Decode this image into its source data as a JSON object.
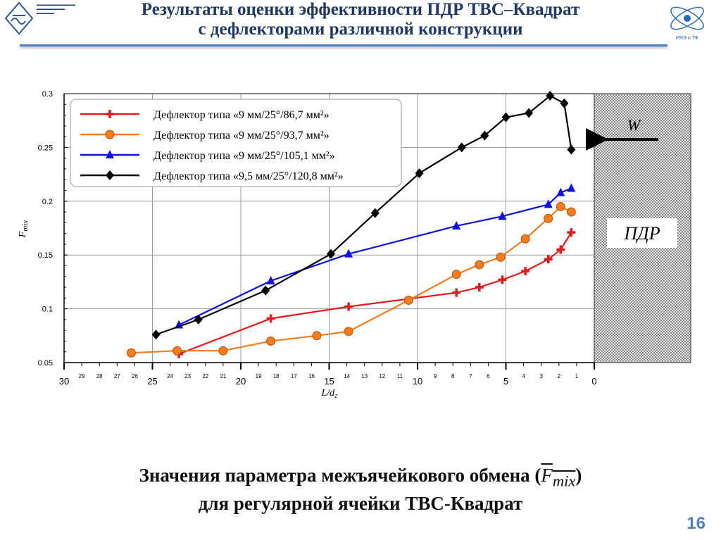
{
  "header": {
    "title_line1": "Результаты оценки эффективности ПДР ТВС–Квадрат",
    "title_line2": "с дефлекторами различной конструкции",
    "logo_right_text": "ИЯЭ и ТФ"
  },
  "caption": {
    "line1_prefix": "Значения параметра межъячейкового обмена (",
    "line1_symbol": "F",
    "line1_sub": "mix",
    "line1_suffix": ")",
    "line2": "для регулярной ячейки ТВС-Квадрат"
  },
  "page_number": "16",
  "chart_data": {
    "type": "line",
    "xlabel": "L/dг",
    "ylabel": "Fmix",
    "xlim": [
      30,
      0
    ],
    "ylim": [
      0.05,
      0.3
    ],
    "y_ticks": [
      "0.05",
      "0.1",
      "0.15",
      "0.2",
      "0.25",
      "0.3"
    ],
    "x_major_ticks": [
      "30",
      "25",
      "20",
      "15",
      "10",
      "5",
      "0"
    ],
    "x_minor_ticks": [
      "29",
      "28",
      "27",
      "26",
      "24",
      "23",
      "22",
      "21",
      "19",
      "18",
      "17",
      "16",
      "14",
      "13",
      "12",
      "11",
      "9",
      "8",
      "7",
      "6",
      "4",
      "3",
      "2",
      "1"
    ],
    "grid": true,
    "legend_position": "top-left",
    "annotations": {
      "zone": "ПДР",
      "flow": "W"
    },
    "series": [
      {
        "name": "Дефлектор типа «9 мм/25°/86,7 мм²»",
        "color": "#e31a1c",
        "marker": "plus",
        "x": [
          23.5,
          18.3,
          13.9,
          7.8,
          6.5,
          5.2,
          3.9,
          2.6,
          1.9,
          1.3
        ],
        "y": [
          0.058,
          0.091,
          0.102,
          0.115,
          0.12,
          0.127,
          0.135,
          0.146,
          0.155,
          0.171
        ]
      },
      {
        "name": "Дефлектор типа «9 мм/25°/93,7 мм²»",
        "color": "#f47c20",
        "marker": "circle",
        "x": [
          26.2,
          23.6,
          21,
          18.3,
          15.7,
          13.9,
          10.5,
          7.8,
          6.5,
          5.3,
          3.9,
          2.6,
          1.9,
          1.3
        ],
        "y": [
          0.059,
          0.061,
          0.061,
          0.07,
          0.075,
          0.079,
          0.108,
          0.132,
          0.141,
          0.148,
          0.165,
          0.184,
          0.195,
          0.19
        ]
      },
      {
        "name": "Дефлектор типа «9 мм/25°/105,1 мм²»",
        "color": "#1010e0",
        "marker": "triangle",
        "x": [
          23.5,
          18.3,
          13.9,
          7.8,
          5.2,
          2.6,
          1.9,
          1.3
        ],
        "y": [
          0.085,
          0.126,
          0.151,
          0.177,
          0.186,
          0.197,
          0.208,
          0.212
        ]
      },
      {
        "name": "Дефлектор типа «9,5 мм/25°/120,8 мм²»",
        "color": "#000000",
        "marker": "diamond",
        "x": [
          24.8,
          22.4,
          18.6,
          14.9,
          12.4,
          9.9,
          7.5,
          6.2,
          5.0,
          3.7,
          2.5,
          1.7,
          1.3
        ],
        "y": [
          0.076,
          0.09,
          0.117,
          0.151,
          0.189,
          0.226,
          0.25,
          0.261,
          0.278,
          0.282,
          0.298,
          0.291,
          0.248
        ]
      }
    ]
  }
}
